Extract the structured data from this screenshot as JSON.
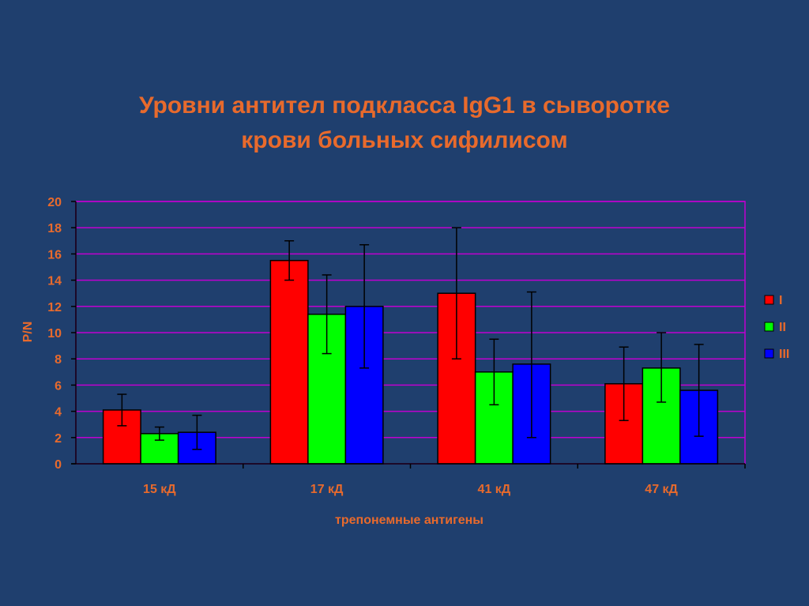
{
  "title": {
    "line1": "Уровни антител подкласса IgG1 в сыворотке",
    "line2": "крови больных сифилисом"
  },
  "colors": {
    "background": "#1F3F6E",
    "text": "#E86A2C",
    "gridline": "#C000D0",
    "axis": "#000000"
  },
  "chart_data": {
    "type": "bar",
    "title": "Уровни антител подкласса IgG1 в сыворотке крови больных сифилисом",
    "xlabel": "трепонемные антигены",
    "ylabel": "P/N",
    "ylim": [
      0,
      20
    ],
    "yticks": [
      0,
      2,
      4,
      6,
      8,
      10,
      12,
      14,
      16,
      18,
      20
    ],
    "grid": true,
    "legend_position": "right",
    "categories": [
      "15 кД",
      "17 кД",
      "41 кД",
      "47 кД"
    ],
    "series": [
      {
        "name": "I",
        "color": "#FF0000",
        "values": [
          4.1,
          15.5,
          13.0,
          6.1
        ],
        "error_low": [
          2.9,
          14.0,
          8.0,
          3.3
        ],
        "error_high": [
          5.3,
          17.0,
          18.0,
          8.9
        ]
      },
      {
        "name": "II",
        "color": "#00FF00",
        "values": [
          2.3,
          11.4,
          7.0,
          7.3
        ],
        "error_low": [
          1.8,
          8.4,
          4.5,
          4.7
        ],
        "error_high": [
          2.8,
          14.4,
          9.5,
          10.0
        ]
      },
      {
        "name": "III",
        "color": "#0000FF",
        "values": [
          2.4,
          12.0,
          7.6,
          5.6
        ],
        "error_low": [
          1.1,
          7.3,
          2.0,
          2.1
        ],
        "error_high": [
          3.7,
          16.7,
          13.1,
          9.1
        ]
      }
    ]
  }
}
